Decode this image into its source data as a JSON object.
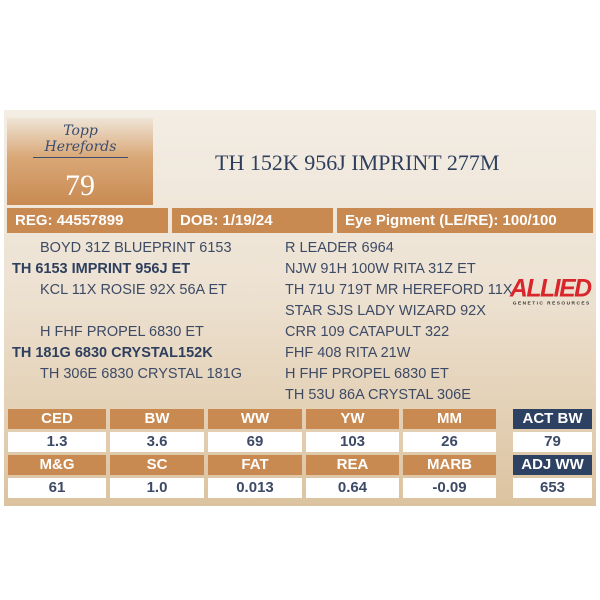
{
  "logo": {
    "text_line1": "Topp",
    "text_line2": "Herefords",
    "lot": "79"
  },
  "title": "TH 152K 956J IMPRINT 277M",
  "info": {
    "reg": "REG: 44557899",
    "dob": "DOB: 1/19/24",
    "eye": "Eye Pigment (LE/RE): 100/100"
  },
  "pedigree": {
    "left": [
      {
        "t": "BOYD 31Z BLUEPRINT 6153",
        "bold": false
      },
      {
        "t": "TH 6153 IMPRINT 956J ET",
        "bold": true
      },
      {
        "t": "KCL 11X ROSIE 92X 56A ET",
        "bold": false
      },
      {
        "t": "H FHF PROPEL 6830 ET",
        "bold": false
      },
      {
        "t": "TH 181G 6830 CRYSTAL152K",
        "bold": true
      },
      {
        "t": "TH 306E 6830 CRYSTAL 181G",
        "bold": false
      }
    ],
    "right": [
      "R LEADER 6964",
      "NJW 91H 100W RITA 31Z ET",
      "TH 71U 719T MR HEREFORD 11X",
      "STAR SJS LADY WIZARD 92X",
      "CRR 109 CATAPULT 322",
      "FHF 408 RITA 21W",
      "H FHF PROPEL 6830 ET",
      "TH 53U 86A CRYSTAL 306E"
    ]
  },
  "sponsor_logo": {
    "text": "ALLIED",
    "subtext": "GENETIC RESOURCES",
    "color": "#d8262c"
  },
  "epds": {
    "row1": {
      "headers": [
        "CED",
        "BW",
        "WW",
        "YW",
        "MM"
      ],
      "values": [
        "1.3",
        "3.6",
        "69",
        "103",
        "26"
      ]
    },
    "row2": {
      "headers": [
        "M&G",
        "SC",
        "FAT",
        "REA",
        "MARB"
      ],
      "values": [
        "61",
        "1.0",
        "0.013",
        "0.64",
        "-0.09"
      ]
    }
  },
  "actual": {
    "act_bw_label": "ACT BW",
    "act_bw": "79",
    "adj_ww_label": "ADJ WW",
    "adj_ww": "653"
  },
  "colors": {
    "accent": "#c98a52",
    "navy": "#2d4163"
  }
}
